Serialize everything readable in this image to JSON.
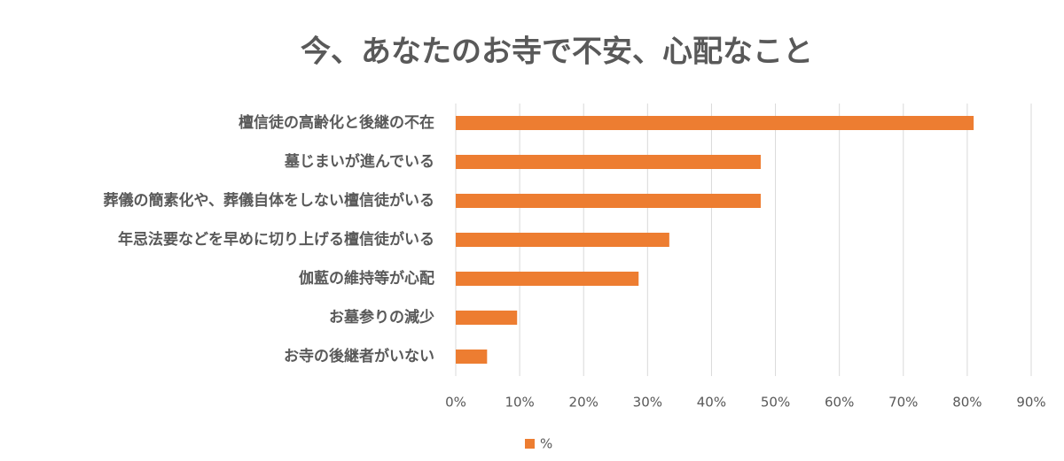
{
  "chart_data": {
    "type": "bar",
    "orientation": "horizontal",
    "title": "今、あなたのお寺で不安、心配なこと",
    "categories": [
      "檀信徒の高齢化と後継の不在",
      "墓じまいが進んでいる",
      "葬儀の簡素化や、葬儀自体をしない檀信徒がいる",
      "年忌法要などを早めに切り上げる檀信徒がいる",
      "伽藍の維持等が心配",
      "お墓参りの減少",
      "お寺の後継者がいない"
    ],
    "series": [
      {
        "name": "%",
        "color": "#ed7d31",
        "values": [
          81,
          47.7,
          47.7,
          33.4,
          28.6,
          9.6,
          4.9
        ]
      }
    ],
    "xlim": [
      0,
      90
    ],
    "xticks": [
      {
        "value": 0,
        "label": "0%"
      },
      {
        "value": 10,
        "label": "10%"
      },
      {
        "value": 20,
        "label": "20%"
      },
      {
        "value": 30,
        "label": "30%"
      },
      {
        "value": 40,
        "label": "40%"
      },
      {
        "value": 50,
        "label": "50%"
      },
      {
        "value": 60,
        "label": "60%"
      },
      {
        "value": 70,
        "label": "70%"
      },
      {
        "value": 80,
        "label": "80%"
      },
      {
        "value": 90,
        "label": "90%"
      }
    ],
    "grid": true,
    "legend": "bottom"
  }
}
